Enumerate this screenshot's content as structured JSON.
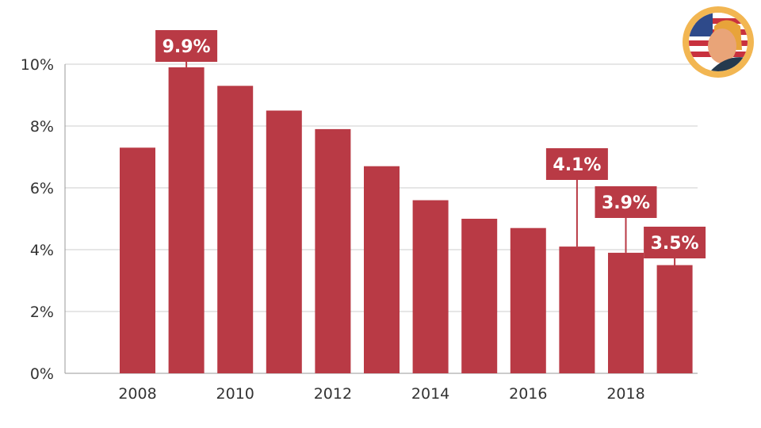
{
  "chart_data": {
    "type": "bar",
    "categories": [
      "2008",
      "2009",
      "2010",
      "2011",
      "2012",
      "2013",
      "2014",
      "2015",
      "2016",
      "2017",
      "2018",
      "2019"
    ],
    "values": [
      7.3,
      9.9,
      9.3,
      8.5,
      7.9,
      6.7,
      5.6,
      5.0,
      4.7,
      4.1,
      3.9,
      3.5
    ],
    "x_tick_labels": [
      "2008",
      "2010",
      "2012",
      "2014",
      "2016",
      "2018"
    ],
    "y_tick_labels": [
      "0%",
      "2%",
      "4%",
      "6%",
      "8%",
      "10%"
    ],
    "ylim": [
      0,
      10
    ],
    "grid": true,
    "bar_color": "#b93a45",
    "annotations": [
      {
        "category": "2009",
        "text": "9.9%"
      },
      {
        "category": "2017",
        "text": "4.1%"
      },
      {
        "category": "2018",
        "text": "3.9%"
      },
      {
        "category": "2019",
        "text": "3.5%"
      }
    ],
    "logo_icon": "american-flag-person-badge-icon"
  }
}
